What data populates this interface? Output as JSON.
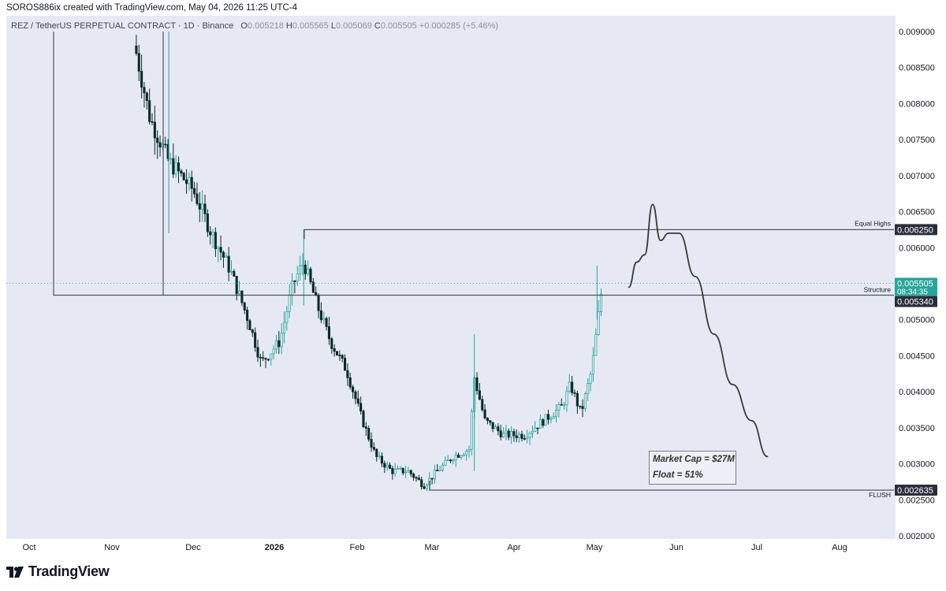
{
  "header": {
    "attribution": "SOROS886ix created with TradingView.com, May 04, 2026 11:25 UTC-4",
    "symbol": "REZ / TetherUS PERPETUAL CONTRACT · 1D · Binance",
    "ohlc": {
      "o_label": "O",
      "o": "0.005218",
      "h_label": "H",
      "h": "0.005565",
      "l_label": "L",
      "l": "0.005069",
      "c_label": "C",
      "c": "0.005505",
      "change": "+0.000285 (+5.46%)"
    }
  },
  "footer": {
    "brand": "TradingView"
  },
  "annotations": {
    "market_cap": "Market Cap = $27M",
    "float": "Float = 51%"
  },
  "chart_data": {
    "type": "candlestick",
    "x_axis_labels": [
      "Oct",
      "Nov",
      "Dec",
      "2026",
      "Feb",
      "Mar",
      "Apr",
      "May",
      "Jun",
      "Jul",
      "Aug"
    ],
    "y_axis_ticks": [
      "0.009000",
      "0.008500",
      "0.008000",
      "0.007500",
      "0.007000",
      "0.006500",
      "0.006000",
      "0.005500",
      "0.005000",
      "0.004500",
      "0.004000",
      "0.003500",
      "0.003000",
      "0.002500",
      "0.002000"
    ],
    "ylim": [
      0.002,
      0.009
    ],
    "levels": [
      {
        "label": "Equal Highs",
        "value": "0.006250"
      },
      {
        "label": "Structure",
        "value": "0.005340"
      },
      {
        "label": "FLUSH",
        "value": "0.002635"
      }
    ],
    "last_price": {
      "value": "0.005505",
      "countdown": "08:34:35"
    },
    "colors": {
      "up": "#26a69a",
      "down": "#0b2a28",
      "level_line": "#2f3340",
      "projection": "#3a3a3a"
    },
    "price_path": [
      {
        "date": "Nov 10",
        "close": 0.0087
      },
      {
        "date": "Nov 15",
        "close": 0.0078
      },
      {
        "date": "Nov 22",
        "close": 0.0072
      },
      {
        "date": "Dec 1",
        "close": 0.0068
      },
      {
        "date": "Dec 8",
        "close": 0.0062
      },
      {
        "date": "Dec 15",
        "close": 0.0057
      },
      {
        "date": "Dec 22",
        "close": 0.005
      },
      {
        "date": "Dec 27",
        "close": 0.0044
      },
      {
        "date": "Jan 3",
        "close": 0.0047
      },
      {
        "date": "Jan 8",
        "close": 0.0055
      },
      {
        "date": "Jan 12",
        "close": 0.0058
      },
      {
        "date": "Jan 17",
        "close": 0.0052
      },
      {
        "date": "Jan 22",
        "close": 0.0047
      },
      {
        "date": "Jan 28",
        "close": 0.0043
      },
      {
        "date": "Feb 3",
        "close": 0.0036
      },
      {
        "date": "Feb 8",
        "close": 0.0031
      },
      {
        "date": "Feb 14",
        "close": 0.0029
      },
      {
        "date": "Feb 20",
        "close": 0.0029
      },
      {
        "date": "Feb 26",
        "close": 0.0027
      },
      {
        "date": "Mar 3",
        "close": 0.0029
      },
      {
        "date": "Mar 9",
        "close": 0.0031
      },
      {
        "date": "Mar 15",
        "close": 0.0032
      },
      {
        "date": "Mar 17",
        "close": 0.0042
      },
      {
        "date": "Mar 21",
        "close": 0.0036
      },
      {
        "date": "Mar 28",
        "close": 0.0034
      },
      {
        "date": "Apr 5",
        "close": 0.0034
      },
      {
        "date": "Apr 12",
        "close": 0.0036
      },
      {
        "date": "Apr 19",
        "close": 0.0038
      },
      {
        "date": "Apr 22",
        "close": 0.0041
      },
      {
        "date": "Apr 26",
        "close": 0.0037
      },
      {
        "date": "Apr 30",
        "close": 0.0043
      },
      {
        "date": "May 2",
        "close": 0.0049
      },
      {
        "date": "May 4",
        "close": 0.005505
      }
    ],
    "projection_path": [
      {
        "date": "May 14",
        "value": 0.00545
      },
      {
        "date": "May 17",
        "value": 0.0058
      },
      {
        "date": "May 20",
        "value": 0.0059
      },
      {
        "date": "May 23",
        "value": 0.0066
      },
      {
        "date": "May 26",
        "value": 0.0061
      },
      {
        "date": "May 29",
        "value": 0.0062
      },
      {
        "date": "Jun 2",
        "value": 0.0062
      },
      {
        "date": "Jun 8",
        "value": 0.0056
      },
      {
        "date": "Jun 15",
        "value": 0.0048
      },
      {
        "date": "Jun 22",
        "value": 0.0041
      },
      {
        "date": "Jun 29",
        "value": 0.0036
      },
      {
        "date": "Jul 5",
        "value": 0.0031
      }
    ]
  }
}
